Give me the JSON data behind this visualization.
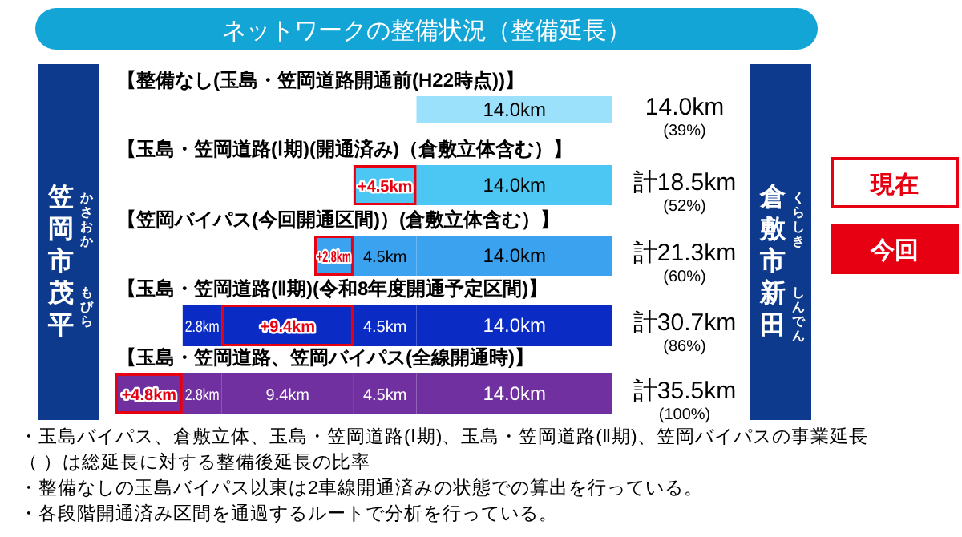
{
  "chart_data": {
    "type": "bar",
    "orientation": "horizontal",
    "stacked": true,
    "title": "ネットワークの整備状況（整備延長）",
    "categories": [
      "【整備なし(玉島・笠岡道路開通前(H22時点))】",
      "【玉島・笠岡道路(Ⅰ期)(開通済み)（倉敷立体含む）】",
      "【笠岡バイパス(今回開通区間)）(倉敷立体含む）】",
      "【玉島・笠岡道路(Ⅱ期)(令和8年度開通予定区間)】",
      "【玉島・笠岡道路、笠岡バイパス(全線開通時)】"
    ],
    "series": [
      {
        "colors": [
          "#9ce1fb",
          "#4cc6f2",
          "#3ba2f0",
          "#0a2bc4",
          "#7030a0"
        ],
        "values": [
          14.0,
          14.0,
          14.0,
          14.0,
          14.0
        ],
        "value_labels": [
          "14.0km",
          "14.0km",
          "14.0km",
          "14.0km",
          "14.0km"
        ]
      },
      {
        "colors": [
          null,
          "#4cc6f2",
          "#3ba2f0",
          "#0a2bc4",
          "#7030a0"
        ],
        "values": [
          null,
          4.5,
          4.5,
          4.5,
          4.5
        ],
        "value_labels": [
          null,
          "+4.5km",
          "4.5km",
          "4.5km",
          "4.5km"
        ]
      },
      {
        "colors": [
          null,
          null,
          null,
          "#0a2bc4",
          "#7030a0"
        ],
        "values": [
          null,
          null,
          null,
          9.4,
          9.4
        ],
        "value_labels": [
          null,
          null,
          null,
          "+9.4km",
          "9.4km"
        ]
      },
      {
        "colors": [
          null,
          null,
          "#3ba2f0",
          "#0a2bc4",
          "#7030a0"
        ],
        "values": [
          null,
          null,
          2.8,
          2.8,
          2.8
        ],
        "value_labels": [
          null,
          null,
          "+2.8km",
          "2.8km",
          "2.8km"
        ]
      },
      {
        "colors": [
          null,
          null,
          null,
          null,
          "#7030a0"
        ],
        "values": [
          null,
          null,
          null,
          null,
          4.8
        ],
        "value_labels": [
          null,
          null,
          null,
          null,
          "+4.8km"
        ]
      }
    ],
    "totals": [
      "14.0km (39%)",
      "計18.5km (52%)",
      "計21.3km (60%)",
      "計30.7km (86%)",
      "計35.5km (100%)"
    ],
    "annotations": [
      "笠岡市茂平",
      "かさおか",
      "もびら",
      "倉敷市新田",
      "くらしき",
      "しんでん",
      "現在",
      "今回",
      "・玉島バイパス、倉敷立体、玉島・笠岡道路(Ⅰ期)、玉島・笠岡道路(Ⅱ期)、笠岡バイパスの事業延長",
      "（ ）は総延長に対する整備後延長の比率",
      "・整備なしの玉島バイパス以東は2車線開通済みの状態での算出を行っている。",
      "・各段階開通済み区間を通過するルートで分析を行っている。"
    ]
  }
}
